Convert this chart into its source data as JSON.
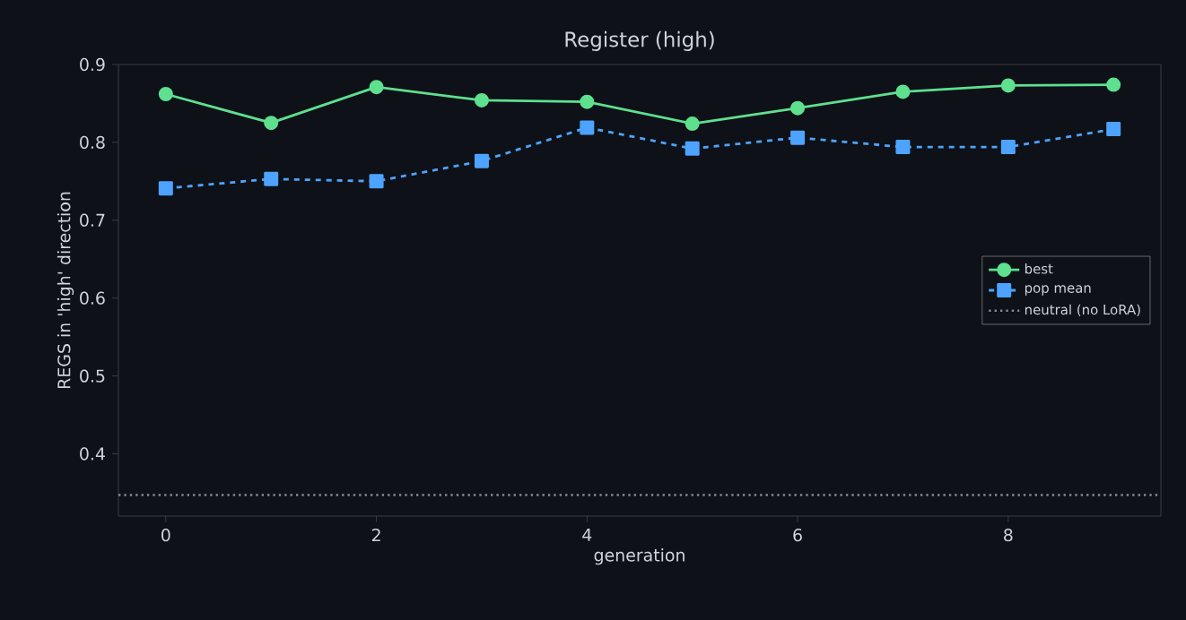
{
  "chart_data": {
    "type": "line",
    "title": "Register (high)",
    "xlabel": "generation",
    "ylabel": "REGS in 'high' direction",
    "x": [
      0,
      1,
      2,
      3,
      4,
      5,
      6,
      7,
      8,
      9
    ],
    "series": [
      {
        "name": "best",
        "color": "#5ee08f",
        "marker": "circle",
        "line_style": "solid",
        "values": [
          0.862,
          0.825,
          0.871,
          0.854,
          0.852,
          0.824,
          0.844,
          0.865,
          0.873,
          0.874
        ]
      },
      {
        "name": "pop mean",
        "color": "#4da3ff",
        "marker": "square",
        "line_style": "dashed",
        "values": [
          0.741,
          0.753,
          0.75,
          0.776,
          0.819,
          0.792,
          0.806,
          0.794,
          0.794,
          0.817
        ]
      }
    ],
    "ref_lines": [
      {
        "axis": "y",
        "value": 0.347,
        "label": "neutral (no LoRA)",
        "color": "#888888",
        "line_style": "dotted"
      }
    ],
    "xlim": [
      -0.45,
      9.45
    ],
    "ylim": [
      0.32,
      0.9
    ],
    "xticks": [
      0,
      2,
      4,
      6,
      8
    ],
    "yticks": [
      0.4,
      0.5,
      0.6,
      0.7,
      0.8,
      0.9
    ],
    "grid": false,
    "legend": "right"
  }
}
